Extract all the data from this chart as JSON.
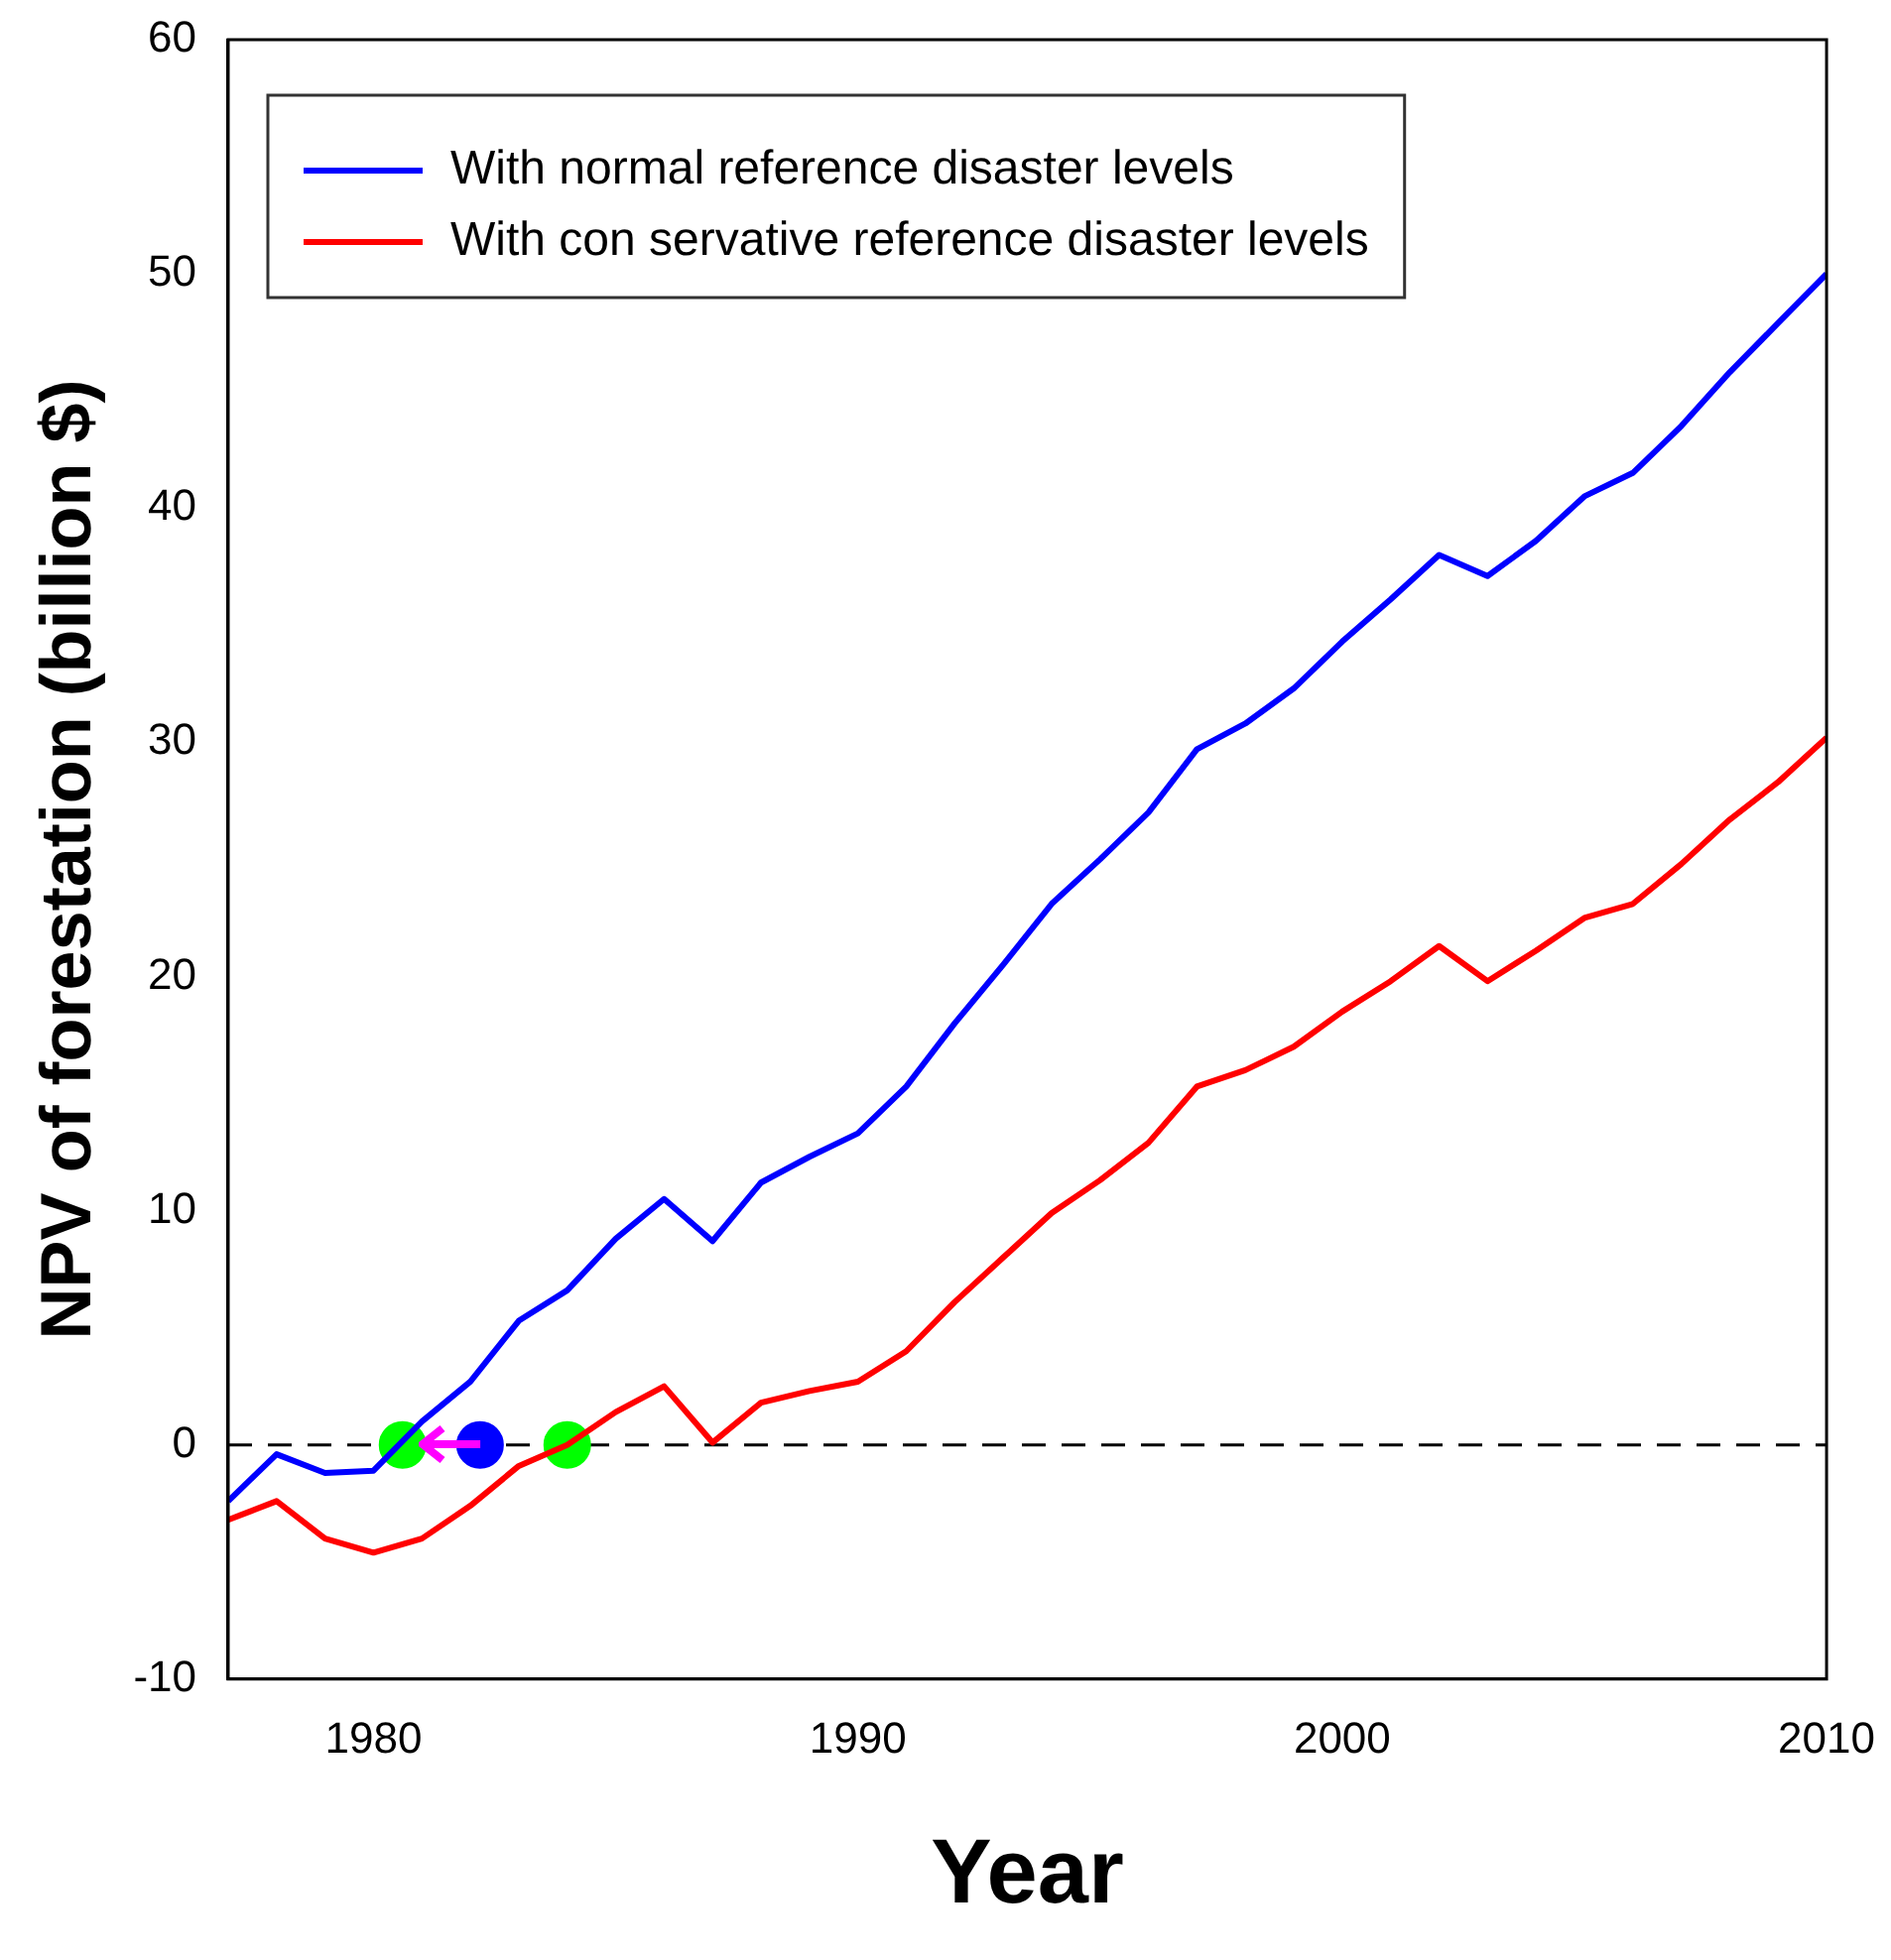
{
  "chart_data": {
    "type": "line",
    "xlabel": "Year",
    "ylabel": "NPV of forestation (billion $)",
    "x": [
      1977,
      1978,
      1979,
      1980,
      1981,
      1982,
      1983,
      1984,
      1985,
      1986,
      1987,
      1988,
      1989,
      1990,
      1991,
      1992,
      1993,
      1994,
      1995,
      1996,
      1997,
      1998,
      1999,
      2000,
      2001,
      2002,
      2003,
      2004,
      2005,
      2006,
      2007,
      2008,
      2009,
      2010
    ],
    "series": [
      {
        "name": "With normal reference disaster levels",
        "color": "#0000ff",
        "values": [
          -2.4,
          -0.4,
          -1.2,
          -1.1,
          1.0,
          2.7,
          5.3,
          6.6,
          8.8,
          10.5,
          8.7,
          11.2,
          12.3,
          13.3,
          15.3,
          18.0,
          20.5,
          23.1,
          25.0,
          27.0,
          29.7,
          30.8,
          32.3,
          34.3,
          36.1,
          38.0,
          37.1,
          38.6,
          40.5,
          41.5,
          43.5,
          45.8,
          47.9,
          50.0
        ]
      },
      {
        "name": "With con servative reference disaster levels",
        "color": "#ff0000",
        "values": [
          -3.2,
          -2.4,
          -4.0,
          -4.6,
          -4.0,
          -2.6,
          -0.9,
          0.0,
          1.4,
          2.5,
          0.1,
          1.8,
          2.3,
          2.7,
          4.0,
          6.1,
          8.0,
          9.9,
          11.3,
          12.9,
          15.3,
          16.0,
          17.0,
          18.5,
          19.8,
          21.3,
          19.8,
          21.1,
          22.5,
          23.1,
          24.8,
          26.7,
          28.3,
          30.2
        ]
      },
      {
        "type": "scatter",
        "marker": "circle",
        "color": "#00ff00",
        "x": [
          1980.6
        ],
        "values": [
          0
        ]
      },
      {
        "type": "scatter",
        "marker": "circle",
        "color": "#0000ff",
        "x": [
          1982.2
        ],
        "values": [
          0
        ]
      },
      {
        "type": "scatter",
        "marker": "circle",
        "color": "#00ff00",
        "x": [
          1984.0
        ],
        "values": [
          0
        ]
      }
    ],
    "xlim": [
      1977,
      2010
    ],
    "xticks": [
      1980,
      1990,
      2000,
      2010
    ],
    "ylim": [
      -10,
      60
    ],
    "yticks": [
      -10,
      0,
      10,
      20,
      30,
      40,
      50,
      60
    ],
    "ref_lines": [
      {
        "axis": "y",
        "value": 0,
        "color": "#000000",
        "line_style": "dashed"
      }
    ],
    "grid": false,
    "legend": "top left",
    "marker": "none",
    "line_style": "solid"
  }
}
